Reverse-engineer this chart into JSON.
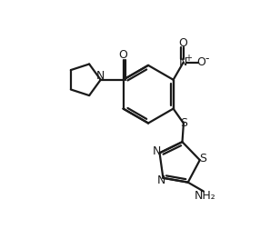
{
  "bg_color": "#ffffff",
  "line_color": "#1a1a1a",
  "line_width": 1.6,
  "figsize": [
    3.08,
    2.74
  ],
  "dpi": 100,
  "xlim": [
    0,
    10
  ],
  "ylim": [
    0,
    9
  ]
}
